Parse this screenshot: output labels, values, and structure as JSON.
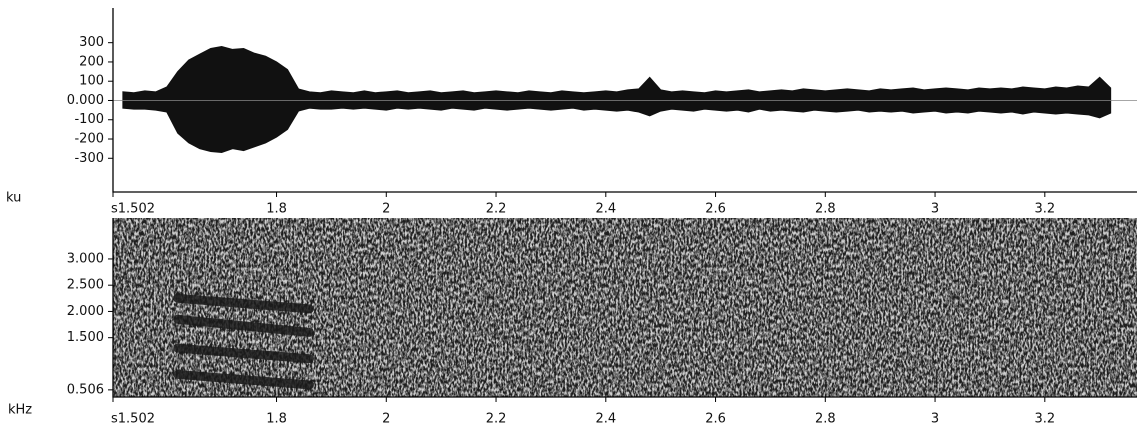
{
  "chart_data": [
    {
      "type": "waveform",
      "y_unit": "ku",
      "xlim": [
        1.502,
        3.368
      ],
      "xticks": [
        {
          "value": 1.502,
          "label": "s1.502"
        },
        1.8,
        2,
        2.2,
        2.4,
        2.6,
        2.8,
        3,
        3.2
      ],
      "ylim": [
        -475,
        480
      ],
      "yticks": [
        300,
        200,
        100,
        {
          "value": 0,
          "label": "0.000"
        },
        -100,
        -200,
        -300
      ],
      "x": [
        1.52,
        1.54,
        1.56,
        1.58,
        1.6,
        1.62,
        1.64,
        1.66,
        1.68,
        1.7,
        1.72,
        1.74,
        1.76,
        1.78,
        1.8,
        1.82,
        1.84,
        1.86,
        1.88,
        1.9,
        1.92,
        1.94,
        1.96,
        1.98,
        2,
        2.02,
        2.04,
        2.06,
        2.08,
        2.1,
        2.12,
        2.14,
        2.16,
        2.18,
        2.2,
        2.22,
        2.24,
        2.26,
        2.28,
        2.3,
        2.32,
        2.34,
        2.36,
        2.38,
        2.4,
        2.42,
        2.44,
        2.46,
        2.48,
        2.5,
        2.52,
        2.54,
        2.56,
        2.58,
        2.6,
        2.62,
        2.64,
        2.66,
        2.68,
        2.7,
        2.72,
        2.74,
        2.76,
        2.78,
        2.8,
        2.82,
        2.84,
        2.86,
        2.88,
        2.9,
        2.92,
        2.94,
        2.96,
        2.98,
        3,
        3.02,
        3.04,
        3.06,
        3.08,
        3.1,
        3.12,
        3.14,
        3.16,
        3.18,
        3.2,
        3.22,
        3.24,
        3.26,
        3.28,
        3.3,
        3.32
      ],
      "series": [
        {
          "color": "#111111",
          "values": [
            45,
            40,
            50,
            45,
            70,
            150,
            210,
            240,
            270,
            280,
            265,
            270,
            245,
            230,
            200,
            160,
            60,
            45,
            40,
            50,
            45,
            40,
            50,
            40,
            45,
            50,
            40,
            45,
            50,
            40,
            45,
            50,
            40,
            45,
            50,
            45,
            40,
            50,
            45,
            40,
            50,
            45,
            40,
            45,
            50,
            45,
            55,
            60,
            120,
            55,
            45,
            50,
            45,
            40,
            50,
            45,
            50,
            55,
            45,
            50,
            55,
            50,
            60,
            55,
            50,
            55,
            60,
            55,
            50,
            60,
            55,
            60,
            65,
            55,
            60,
            65,
            60,
            55,
            65,
            60,
            65,
            60,
            70,
            65,
            60,
            70,
            65,
            75,
            70,
            120,
            65
          ]
        },
        {
          "color": "#111111",
          "values": [
            -40,
            -45,
            -45,
            -50,
            -60,
            -170,
            -220,
            -250,
            -265,
            -270,
            -250,
            -260,
            -240,
            -220,
            -190,
            -150,
            -55,
            -40,
            -45,
            -45,
            -40,
            -45,
            -40,
            -45,
            -50,
            -40,
            -45,
            -40,
            -45,
            -50,
            -40,
            -45,
            -50,
            -40,
            -45,
            -50,
            -45,
            -40,
            -45,
            -50,
            -45,
            -40,
            -50,
            -45,
            -50,
            -55,
            -50,
            -60,
            -80,
            -55,
            -45,
            -50,
            -55,
            -45,
            -50,
            -55,
            -50,
            -60,
            -45,
            -55,
            -50,
            -55,
            -60,
            -50,
            -55,
            -60,
            -55,
            -50,
            -60,
            -55,
            -60,
            -55,
            -65,
            -60,
            -55,
            -65,
            -60,
            -65,
            -55,
            -60,
            -65,
            -60,
            -70,
            -60,
            -65,
            -70,
            -65,
            -70,
            -75,
            -90,
            -65
          ]
        }
      ]
    },
    {
      "type": "spectrogram",
      "y_unit": "kHz",
      "xlim": [
        1.502,
        3.368
      ],
      "xticks": [
        {
          "value": 1.502,
          "label": "s1.502"
        },
        1.8,
        2,
        2.2,
        2.4,
        2.6,
        2.8,
        3,
        3.2
      ],
      "ylim": [
        0.37,
        3.78
      ],
      "yticks": [
        {
          "value": 3,
          "label": "3.000"
        },
        {
          "value": 2.5,
          "label": "2.500"
        },
        {
          "value": 2,
          "label": "2.000"
        },
        {
          "value": 1.5,
          "label": "1.500"
        },
        {
          "value": 0.506,
          "label": "0.506"
        }
      ],
      "x": [
        1.62,
        1.86
      ],
      "series": [
        {
          "color": "#1a1a1a",
          "values": [
            0.8,
            0.6
          ]
        },
        {
          "color": "#1a1a1a",
          "values": [
            1.3,
            1.1
          ]
        },
        {
          "color": "#1a1a1a",
          "values": [
            1.85,
            1.6
          ]
        },
        {
          "color": "#1a1a1a",
          "values": [
            2.25,
            2.05
          ]
        }
      ]
    }
  ]
}
